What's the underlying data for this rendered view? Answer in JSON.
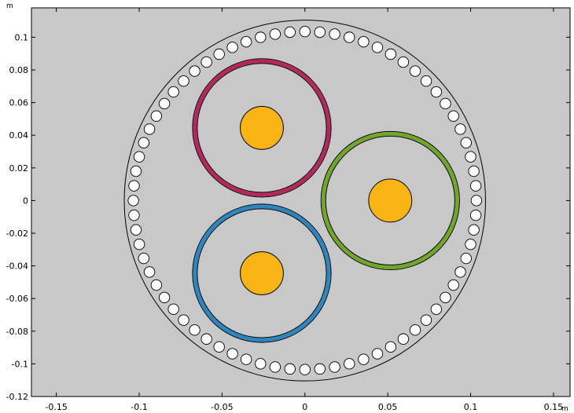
{
  "chart_data": {
    "type": "diagram",
    "title": "",
    "x_unit": "m",
    "y_unit": "m",
    "xlim": [
      -0.165,
      0.16
    ],
    "ylim": [
      -0.12,
      0.118
    ],
    "x_ticks": [
      -0.15,
      -0.1,
      -0.05,
      0,
      0.05,
      0.1,
      0.15
    ],
    "y_ticks": [
      0.1,
      0.08,
      0.06,
      0.04,
      0.02,
      0,
      -0.02,
      -0.04,
      -0.06,
      -0.08,
      -0.1,
      -0.12
    ],
    "x_tick_labels": [
      "-0.15",
      "-0.1",
      "-0.05",
      "0",
      "0.05",
      "0.1",
      "0.15"
    ],
    "y_tick_labels": [
      "0.1",
      "0.08",
      "0.06",
      "0.04",
      "0.02",
      "0",
      "-0.02",
      "-0.04",
      "-0.06",
      "-0.08",
      "-0.1",
      "-0.12"
    ],
    "outer_circle": {
      "cx": 0.0,
      "cy": 0.0,
      "r": 0.109
    },
    "armour_ring": {
      "count": 72,
      "ring_radius": 0.1035,
      "wire_radius": 0.0032
    },
    "phases": [
      {
        "cx": -0.026,
        "cy": 0.0445,
        "r": 0.0418,
        "conductor_r": 0.013,
        "color": "#b5285e"
      },
      {
        "cx": 0.0515,
        "cy": 0.0,
        "r": 0.0418,
        "conductor_r": 0.013,
        "color": "#71a62b"
      },
      {
        "cx": -0.026,
        "cy": -0.0445,
        "r": 0.0418,
        "conductor_r": 0.013,
        "color": "#2e86c1"
      }
    ],
    "colors": {
      "background": "#c8c8c8",
      "conductor": "#fbb416",
      "wire_fill": "#ffffff",
      "outline": "#000000"
    }
  }
}
